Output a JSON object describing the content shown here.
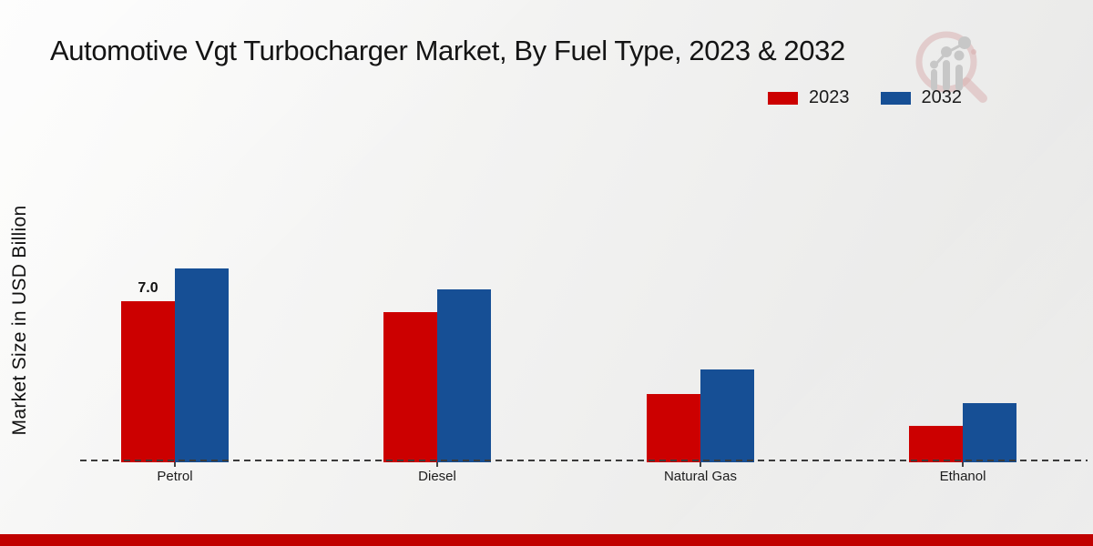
{
  "page_title": "Automotive Vgt Turbocharger Market, By Fuel Type, 2023 & 2032",
  "chart_data": {
    "type": "bar",
    "title": "Automotive Vgt Turbocharger Market, By Fuel Type, 2023 & 2032",
    "xlabel": "",
    "ylabel": "Market Size in USD Billion",
    "categories": [
      "Petrol",
      "Diesel",
      "Natural Gas",
      "Ethanol"
    ],
    "series": [
      {
        "name": "2023",
        "color": "#cc0000",
        "values": [
          7.0,
          6.5,
          2.9,
          1.5
        ]
      },
      {
        "name": "2032",
        "color": "#164f95",
        "values": [
          8.4,
          7.5,
          4.0,
          2.5
        ]
      }
    ],
    "data_labels": [
      {
        "category_index": 0,
        "series_index": 0,
        "text": "7.0"
      }
    ],
    "ylim": [
      0,
      9.5
    ],
    "grid": false,
    "axis_style": "dashed-baseline-only",
    "legend_position": "top-right"
  },
  "colors": {
    "series_2023": "#cc0000",
    "series_2032": "#164f95",
    "footer_strip": "#c00100",
    "baseline": "#3b3b3b",
    "background_light": "#fbfbfa",
    "background_dark": "#e7e7e6"
  },
  "watermark": {
    "name": "market-research-chart-logo"
  }
}
